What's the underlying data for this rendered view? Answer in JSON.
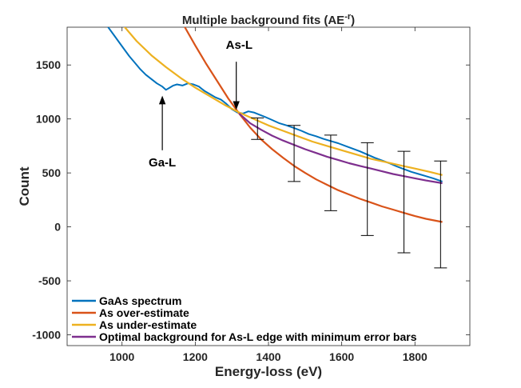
{
  "chart_data": {
    "type": "line",
    "title": "Multiple background fits (AE",
    "title_superscript": "-r",
    "title_suffix": ")",
    "xlabel": "Energy-loss (eV)",
    "ylabel": "Count",
    "xlim": [
      850,
      1950
    ],
    "ylim": [
      -1100,
      1850
    ],
    "xticks": [
      1000,
      1200,
      1400,
      1600,
      1800
    ],
    "yticks": [
      -1000,
      -500,
      0,
      500,
      1000,
      1500
    ],
    "grid": false,
    "legend_position": "bottom-left",
    "series": [
      {
        "name": "GaAs spectrum",
        "color": "#0072BD",
        "x": [
          960,
          975,
          990,
          1005,
          1020,
          1035,
          1050,
          1065,
          1080,
          1095,
          1110,
          1120,
          1130,
          1140,
          1150,
          1165,
          1180,
          1195,
          1210,
          1225,
          1240,
          1255,
          1270,
          1285,
          1300,
          1315,
          1330,
          1345,
          1360,
          1375,
          1390,
          1410,
          1430,
          1450,
          1470,
          1490,
          1510,
          1530,
          1550,
          1570,
          1590,
          1610,
          1630,
          1650,
          1670,
          1690,
          1710,
          1730,
          1750,
          1770,
          1790,
          1810,
          1830,
          1850,
          1875
        ],
        "y": [
          1860,
          1790,
          1720,
          1650,
          1580,
          1520,
          1460,
          1410,
          1370,
          1330,
          1300,
          1270,
          1290,
          1310,
          1320,
          1310,
          1330,
          1320,
          1300,
          1260,
          1230,
          1200,
          1180,
          1140,
          1090,
          1060,
          1050,
          1070,
          1060,
          1040,
          1020,
          990,
          960,
          940,
          915,
          890,
          860,
          840,
          815,
          795,
          775,
          750,
          725,
          700,
          670,
          640,
          615,
          590,
          560,
          535,
          510,
          490,
          470,
          450,
          420
        ]
      },
      {
        "name": "As over-estimate",
        "color": "#D95319",
        "x": [
          1170,
          1200,
          1230,
          1260,
          1290,
          1320,
          1350,
          1380,
          1410,
          1440,
          1470,
          1500,
          1530,
          1560,
          1590,
          1620,
          1650,
          1680,
          1710,
          1740,
          1770,
          1800,
          1830,
          1875
        ],
        "y": [
          1860,
          1680,
          1510,
          1350,
          1190,
          1050,
          920,
          810,
          720,
          640,
          565,
          500,
          440,
          390,
          340,
          300,
          260,
          225,
          190,
          160,
          130,
          100,
          75,
          45
        ]
      },
      {
        "name": "As under-estimate",
        "color": "#EDB120",
        "x": [
          1000,
          1040,
          1080,
          1120,
          1160,
          1200,
          1240,
          1280,
          1320,
          1360,
          1400,
          1440,
          1480,
          1520,
          1560,
          1600,
          1640,
          1680,
          1720,
          1760,
          1800,
          1840,
          1875
        ],
        "y": [
          1880,
          1720,
          1590,
          1480,
          1380,
          1290,
          1210,
          1130,
          1060,
          1000,
          940,
          890,
          840,
          790,
          750,
          710,
          670,
          630,
          600,
          570,
          540,
          510,
          480
        ]
      },
      {
        "name": "Optimal background for As-L edge with minimum error bars",
        "color": "#7E2F8E",
        "x": [
          1320,
          1350,
          1380,
          1410,
          1440,
          1470,
          1500,
          1530,
          1560,
          1590,
          1620,
          1650,
          1680,
          1710,
          1740,
          1770,
          1800,
          1830,
          1875
        ],
        "y": [
          1050,
          960,
          900,
          845,
          800,
          760,
          720,
          685,
          650,
          620,
          590,
          565,
          540,
          515,
          490,
          470,
          450,
          430,
          405
        ]
      }
    ],
    "error_bars": [
      {
        "x": 1370,
        "low": 810,
        "high": 1010
      },
      {
        "x": 1470,
        "low": 420,
        "high": 940
      },
      {
        "x": 1570,
        "low": 150,
        "high": 850
      },
      {
        "x": 1670,
        "low": -80,
        "high": 780
      },
      {
        "x": 1770,
        "low": -240,
        "high": 700
      },
      {
        "x": 1870,
        "low": -380,
        "high": 610
      }
    ],
    "annotations": [
      {
        "text": "As-L",
        "x": 1320,
        "y": 1650,
        "arrow_to": [
          1312,
          1120
        ],
        "arrow_from": [
          1312,
          1530
        ]
      },
      {
        "text": "Ga-L",
        "x": 1110,
        "y": 560,
        "arrow_to": [
          1110,
          1180
        ],
        "arrow_from": [
          1110,
          710
        ]
      }
    ]
  }
}
